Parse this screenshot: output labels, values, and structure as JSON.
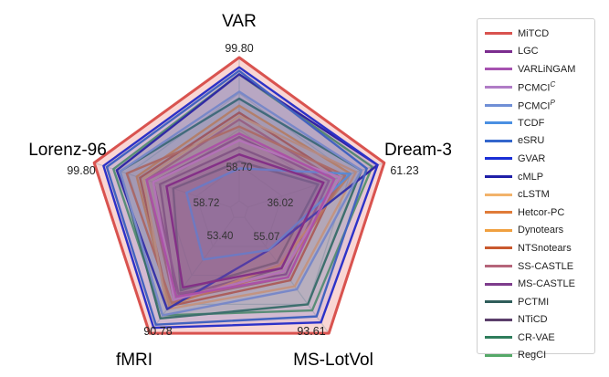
{
  "chart_data": {
    "type": "radar",
    "axes": [
      {
        "name": "VAR",
        "min_label": "58.70",
        "max_label": "99.80",
        "min": 58.7,
        "max": 99.8
      },
      {
        "name": "Dream-3",
        "min_label": "36.02",
        "max_label": "61.23",
        "min": 36.02,
        "max": 61.23
      },
      {
        "name": "MS-LotVol",
        "min_label": "55.07",
        "max_label": "93.61",
        "min": 55.07,
        "max": 93.61
      },
      {
        "name": "fMRI",
        "min_label": "53.40",
        "max_label": "90.78",
        "min": 53.4,
        "max": 90.78
      },
      {
        "name": "Lorenz-96",
        "min_label": "58.72",
        "max_label": "99.80",
        "min": 58.72,
        "max": 99.8
      }
    ],
    "grid_rings": 4,
    "series": [
      {
        "name": "MiTCD",
        "html_name": "MiTCD",
        "color": "#d9534f",
        "values": [
          99.8,
          61.23,
          93.61,
          90.78,
          99.8
        ]
      },
      {
        "name": "LGC",
        "html_name": "LGC",
        "color": "#7b2d8e",
        "values": [
          72,
          50,
          72,
          76,
          78
        ]
      },
      {
        "name": "VARLiNGAM",
        "html_name": "VARLiNGAM",
        "color": "#a652b0",
        "values": [
          78,
          52,
          75,
          79,
          84
        ]
      },
      {
        "name": "PCMCI^C",
        "html_name": "PCMCI<sup>C</sup>",
        "color": "#b07cc6",
        "values": [
          76,
          53,
          73,
          80,
          82
        ]
      },
      {
        "name": "PCMCI^P",
        "html_name": "PCMCI<sup>P</sup>",
        "color": "#6f8fd6",
        "values": [
          90,
          57,
          79,
          85,
          92
        ]
      },
      {
        "name": "TCDF",
        "html_name": "TCDF",
        "color": "#4a90e2",
        "values": [
          68,
          55,
          66,
          67,
          72
        ]
      },
      {
        "name": "eSRU",
        "html_name": "eSRU",
        "color": "#3366cc",
        "values": [
          96,
          58,
          88,
          88,
          96
        ]
      },
      {
        "name": "GVAR",
        "html_name": "GVAR",
        "color": "#1a2fd6",
        "values": [
          97,
          60,
          90,
          89,
          97
        ]
      },
      {
        "name": "cMLP",
        "html_name": "cMLP",
        "color": "#1f1fa8",
        "values": [
          95,
          60,
          66,
          83,
          93
        ]
      },
      {
        "name": "cLSTM",
        "html_name": "cLSTM",
        "color": "#f2b36b",
        "values": [
          83,
          56,
          78,
          83,
          85
        ]
      },
      {
        "name": "Hetcor-PC",
        "html_name": "Hetcor-PC",
        "color": "#e07b39",
        "values": [
          80,
          54,
          73,
          81,
          90
        ]
      },
      {
        "name": "Dynotears",
        "html_name": "Dynotears",
        "color": "#f0a040",
        "values": [
          86,
          55,
          71,
          82,
          87
        ]
      },
      {
        "name": "NTSnotears",
        "html_name": "NTSnotears",
        "color": "#c9592e",
        "values": [
          84,
          53,
          76,
          82,
          86
        ]
      },
      {
        "name": "SS-CASTLE",
        "html_name": "SS-CASTLE",
        "color": "#b5657a",
        "values": [
          82,
          52,
          75,
          80,
          84
        ]
      },
      {
        "name": "MS-CASTLE",
        "html_name": "MS-CASTLE",
        "color": "#7e3c8c",
        "values": [
          77,
          51,
          74,
          78,
          82
        ]
      },
      {
        "name": "PCTMI",
        "html_name": "PCTMI",
        "color": "#2f5d5a",
        "values": [
          70,
          49,
          70,
          77,
          76
        ]
      },
      {
        "name": "NTiCD",
        "html_name": "NTiCD",
        "color": "#5b3f6b",
        "values": [
          74,
          50,
          72,
          79,
          80
        ]
      },
      {
        "name": "CR-VAE",
        "html_name": "CR-VAE",
        "color": "#2e7d5b",
        "values": [
          88,
          57,
          84,
          86,
          92
        ]
      },
      {
        "name": "RegCI",
        "html_name": "RegCI",
        "color": "#55a868",
        "values": [
          95,
          59,
          86,
          85,
          94
        ]
      }
    ]
  }
}
